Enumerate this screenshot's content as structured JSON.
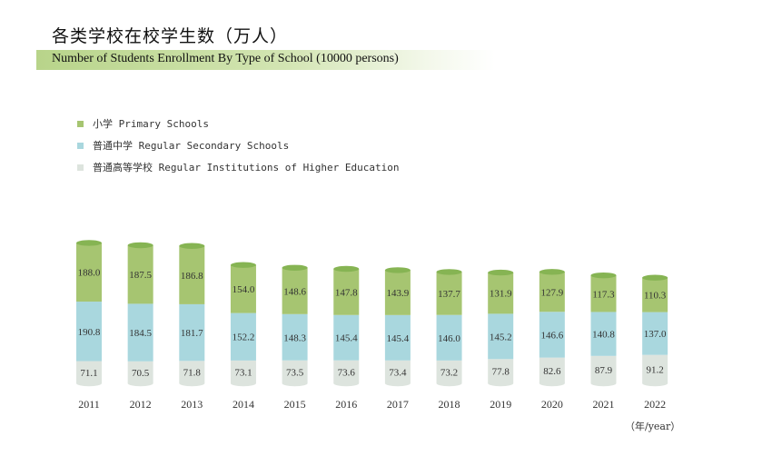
{
  "header": {
    "title_zh": "各类学校在校学生数（万人）",
    "title_en": "Number of Students Enrollment By Type of School (10000 persons)"
  },
  "colors": {
    "primary": "#a6c571",
    "primary_top": "#86b453",
    "secondary": "#a9d7de",
    "higher": "#dde4de",
    "banner": "#bcd78f"
  },
  "legend": [
    {
      "label": "小学 Primary Schools",
      "color": "#a6c571"
    },
    {
      "label": "普通中学 Regular Secondary Schools",
      "color": "#a9d7de"
    },
    {
      "label": "普通高等学校 Regular Institutions of Higher Education",
      "color": "#dde4de"
    }
  ],
  "unit_label": "（年/year）",
  "chart_data": {
    "type": "bar",
    "stacked": true,
    "categories": [
      "2011",
      "2012",
      "2013",
      "2014",
      "2015",
      "2016",
      "2017",
      "2018",
      "2019",
      "2020",
      "2021",
      "2022"
    ],
    "series": [
      {
        "name": "普通高等学校 Regular Institutions of Higher Education",
        "values": [
          71.1,
          70.5,
          71.8,
          73.1,
          73.5,
          73.6,
          73.4,
          73.2,
          77.8,
          82.6,
          87.9,
          91.2
        ]
      },
      {
        "name": "普通中学 Regular Secondary Schools",
        "values": [
          190.8,
          184.5,
          181.7,
          152.2,
          148.3,
          145.4,
          145.4,
          146.0,
          145.2,
          146.6,
          140.8,
          137.0
        ]
      },
      {
        "name": "小学 Primary Schools",
        "values": [
          188.0,
          187.5,
          186.8,
          154.0,
          148.6,
          147.8,
          143.9,
          137.7,
          131.9,
          127.9,
          117.3,
          110.3
        ]
      }
    ],
    "title": "",
    "xlabel": "",
    "ylabel": "",
    "grid": false,
    "legend_position": "top-left"
  }
}
